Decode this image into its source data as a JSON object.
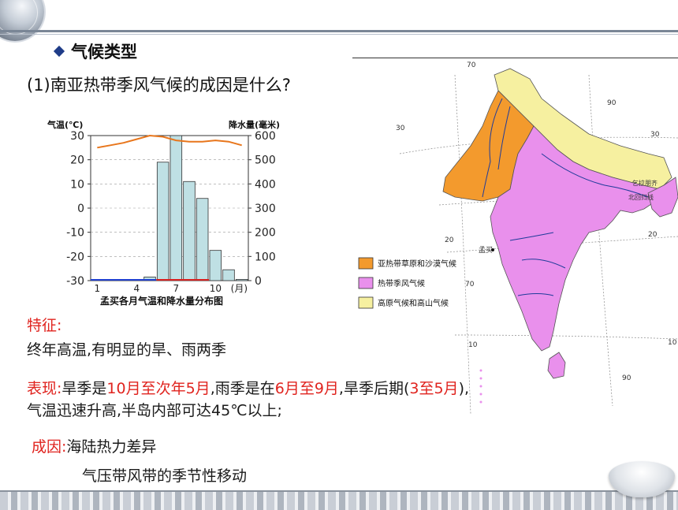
{
  "slide": {
    "heading": "气候类型",
    "question": "(1)南亚热带季风气候的成因是什么?",
    "feature_label": "特征:",
    "feature_text": "终年高温,有明显的旱、雨两季",
    "perf": {
      "label": "表现:",
      "p1": "旱季是",
      "dry": "10月至次年5月",
      "p2": ",雨季是在",
      "wet": "6月至9月",
      "p3": ",旱季后期(",
      "late": "3至5月",
      "p4": "),",
      "line2": "气温迅速升高,半岛内部可达45℃以上;"
    },
    "cause": {
      "label": "成因:",
      "line1": "海陆热力差异",
      "line2": "气压带风带的季节性移动"
    }
  },
  "chart_data": {
    "type": "bar",
    "title": "孟买各月气温和降水量分布图",
    "ylabel_left": "气温(℃)",
    "ylabel_right": "降水量(毫米)",
    "left_ticks": [
      "30",
      "20",
      "10",
      "0",
      "-10",
      "-20",
      "-30"
    ],
    "right_ticks": [
      "600",
      "500",
      "400",
      "300",
      "200",
      "100",
      "0"
    ],
    "x_ticks": [
      "1",
      "4",
      "7",
      "10",
      "(月)"
    ],
    "categories": [
      "1",
      "2",
      "3",
      "4",
      "5",
      "6",
      "7",
      "8",
      "9",
      "10",
      "11",
      "12"
    ],
    "ylim_temp": [
      -30,
      30
    ],
    "ylim_precip": [
      0,
      600
    ],
    "precip": [
      2,
      1,
      0,
      1,
      15,
      490,
      615,
      410,
      340,
      125,
      45,
      5
    ],
    "temp": [
      25,
      26,
      27,
      28.5,
      30,
      29.5,
      28,
      27.5,
      27.5,
      28,
      27.5,
      26
    ],
    "colors": {
      "bar": "#bfe0e4",
      "bar_stroke": "#333333",
      "temp_line": "#e8761c",
      "dry": "#2040d0",
      "wet": "#d82020"
    }
  },
  "map_data": {
    "legend": [
      {
        "label": "亚热带草原和沙漠气候",
        "color": "#f39a2d"
      },
      {
        "label": "热带季风气候",
        "color": "#e990ec"
      },
      {
        "label": "高原气候和高山气候",
        "color": "#f6f0a0"
      }
    ],
    "labels": {
      "lon70": "70",
      "lon90": "90",
      "lat30": "30",
      "lat20": "20",
      "lat10": "10",
      "city": "孟买",
      "place1": "乞拉朋齐",
      "place2": "北回归线"
    }
  }
}
